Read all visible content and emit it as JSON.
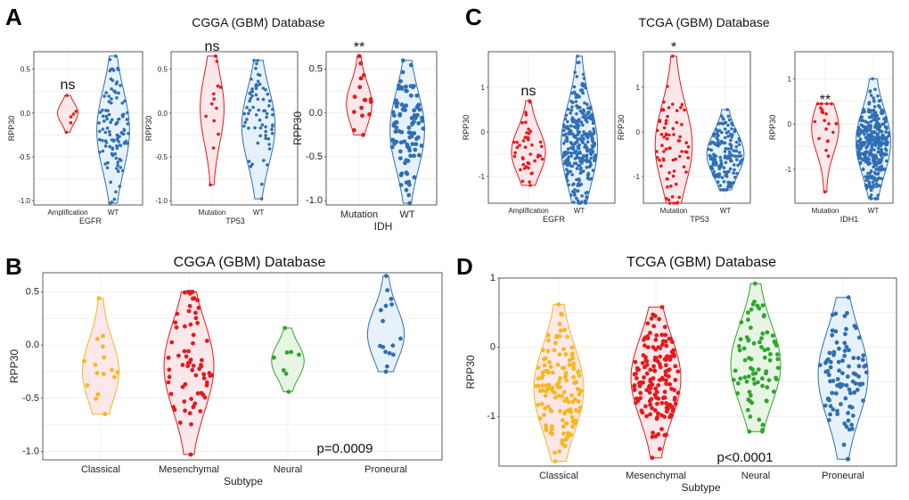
{
  "figure": {
    "panels": [
      {
        "letter": "A",
        "title": "CGGA (GBM) Database"
      },
      {
        "letter": "B",
        "title": "CGGA (GBM) Database"
      },
      {
        "letter": "C",
        "title": "TCGA (GBM) Database"
      },
      {
        "letter": "D",
        "title": "TCGA (GBM) Database"
      }
    ]
  },
  "colors": {
    "red": "#e41a1c",
    "blue": "#2f6fb4",
    "orange": "#f5b820",
    "green": "#2ea62e",
    "pink_fill": "#fbe3e6",
    "green_fill": "#e4f3e0",
    "blue_fill": "#e2eef8"
  },
  "chart_data": [
    {
      "id": "A1",
      "type": "scatter",
      "panel": "A",
      "title": "",
      "xlabel": "EGFR",
      "ylabel": "RPP30",
      "ylim": [
        -1.05,
        0.7
      ],
      "yticks": [
        -1.0,
        -0.5,
        0.0,
        0.5
      ],
      "categories": [
        "Amplification",
        "WT"
      ],
      "annotation": "ns",
      "series": [
        {
          "name": "Amplification",
          "color": "red",
          "n": 6,
          "min": -0.22,
          "max": 0.2,
          "median": 0.0
        },
        {
          "name": "WT",
          "color": "blue",
          "n": 110,
          "min": -1.03,
          "max": 0.65,
          "median": -0.2
        }
      ]
    },
    {
      "id": "A2",
      "type": "scatter",
      "panel": "A",
      "title": "",
      "xlabel": "TP53",
      "ylabel": "RPP30",
      "ylim": [
        -1.05,
        0.7
      ],
      "yticks": [
        -1.0,
        -0.5,
        0.0,
        0.5
      ],
      "categories": [
        "Mutation",
        "WT"
      ],
      "annotation": "ns",
      "series": [
        {
          "name": "Mutation",
          "color": "red",
          "n": 14,
          "min": -0.82,
          "max": 0.65,
          "median": 0.05
        },
        {
          "name": "WT",
          "color": "blue",
          "n": 70,
          "min": -0.98,
          "max": 0.6,
          "median": -0.15
        }
      ]
    },
    {
      "id": "A3",
      "type": "scatter",
      "panel": "A",
      "title": "",
      "xlabel": "IDH",
      "ylabel": "RPP30",
      "ylim": [
        -1.05,
        0.7
      ],
      "yticks": [
        -1.0,
        -0.5,
        0.0,
        0.5
      ],
      "categories": [
        "Mutation",
        "WT"
      ],
      "annotation": "**",
      "series": [
        {
          "name": "Mutation",
          "color": "red",
          "n": 16,
          "min": -0.25,
          "max": 0.65,
          "median": 0.1
        },
        {
          "name": "WT",
          "color": "blue",
          "n": 100,
          "min": -1.03,
          "max": 0.6,
          "median": -0.2
        }
      ]
    },
    {
      "id": "B",
      "type": "scatter",
      "panel": "B",
      "title": "",
      "xlabel": "Subtype",
      "ylabel": "RPP30",
      "ylim": [
        -1.08,
        0.68
      ],
      "yticks": [
        -1.0,
        -0.5,
        0.0,
        0.5
      ],
      "categories": [
        "Classical",
        "Mesenchymal",
        "Neural",
        "Proneural"
      ],
      "annotation": "p=0.0009",
      "series": [
        {
          "name": "Classical",
          "color": "orange",
          "n": 16,
          "min": -0.65,
          "max": 0.44,
          "median": -0.25
        },
        {
          "name": "Mesenchymal",
          "color": "red",
          "n": 70,
          "min": -1.03,
          "max": 0.5,
          "median": -0.2
        },
        {
          "name": "Neural",
          "color": "green",
          "n": 8,
          "min": -0.44,
          "max": 0.16,
          "median": -0.15
        },
        {
          "name": "Proneural",
          "color": "blue",
          "n": 16,
          "min": -0.25,
          "max": 0.65,
          "median": 0.1
        }
      ]
    },
    {
      "id": "C1",
      "type": "scatter",
      "panel": "C",
      "title": "",
      "xlabel": "EGFR",
      "ylabel": "RPP30",
      "ylim": [
        -1.6,
        1.8
      ],
      "yticks": [
        -1,
        0,
        1
      ],
      "categories": [
        "Amplification",
        "WT"
      ],
      "annotation": "ns",
      "series": [
        {
          "name": "Amplification",
          "color": "red",
          "n": 45,
          "min": -1.2,
          "max": 0.7,
          "median": -0.45
        },
        {
          "name": "WT",
          "color": "blue",
          "n": 300,
          "min": -1.6,
          "max": 1.7,
          "median": -0.3
        }
      ]
    },
    {
      "id": "C2",
      "type": "scatter",
      "panel": "C",
      "title": "",
      "xlabel": "TP53",
      "ylabel": "RPP30",
      "ylim": [
        -1.6,
        1.8
      ],
      "yticks": [
        -1,
        0,
        1
      ],
      "categories": [
        "Mutation",
        "WT"
      ],
      "annotation": "*",
      "series": [
        {
          "name": "Mutation",
          "color": "red",
          "n": 70,
          "min": -1.6,
          "max": 1.7,
          "median": -0.3
        },
        {
          "name": "WT",
          "color": "blue",
          "n": 160,
          "min": -1.3,
          "max": 0.5,
          "median": -0.5
        }
      ]
    },
    {
      "id": "C3",
      "type": "scatter",
      "panel": "C",
      "title": "",
      "xlabel": "IDH1",
      "ylabel": "RPP30",
      "ylim": [
        -1.75,
        1.6
      ],
      "yticks": [
        -1,
        0,
        1
      ],
      "categories": [
        "Mutation",
        "WT"
      ],
      "annotation": "**",
      "series": [
        {
          "name": "Mutation",
          "color": "red",
          "n": 22,
          "min": -1.5,
          "max": 0.45,
          "median": -0.1
        },
        {
          "name": "WT",
          "color": "blue",
          "n": 380,
          "min": -1.65,
          "max": 1.0,
          "median": -0.4
        }
      ]
    },
    {
      "id": "D",
      "type": "scatter",
      "panel": "D",
      "title": "",
      "xlabel": "Subtype",
      "ylabel": "RPP30",
      "ylim": [
        -1.72,
        1.0
      ],
      "yticks": [
        -1,
        0,
        1
      ],
      "categories": [
        "Classical",
        "Mesenchymal",
        "Neural",
        "Proneural"
      ],
      "annotation": "p<0.0001",
      "series": [
        {
          "name": "Classical",
          "color": "orange",
          "n": 140,
          "min": -1.65,
          "max": 0.62,
          "median": -0.6
        },
        {
          "name": "Mesenchymal",
          "color": "red",
          "n": 160,
          "min": -1.6,
          "max": 0.58,
          "median": -0.45
        },
        {
          "name": "Neural",
          "color": "green",
          "n": 80,
          "min": -1.22,
          "max": 0.92,
          "median": -0.25
        },
        {
          "name": "Proneural",
          "color": "blue",
          "n": 95,
          "min": -1.62,
          "max": 0.72,
          "median": -0.4
        }
      ]
    }
  ]
}
